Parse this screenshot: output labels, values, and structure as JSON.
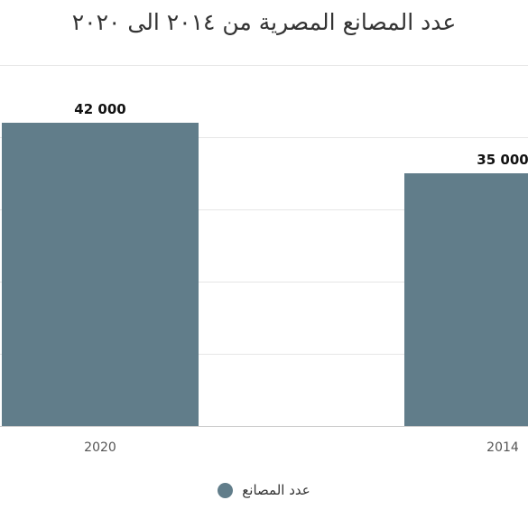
{
  "chart_data": {
    "type": "bar",
    "title": "عدد المصانع المصرية من ٢٠١٤ الى ٢٠٢٠",
    "xlabel": "",
    "ylabel": "",
    "categories": [
      "2014",
      "2020"
    ],
    "series": [
      {
        "name": "عدد المصانع",
        "values": [
          35000,
          42000
        ],
        "data_labels": [
          "35 000",
          "42 000"
        ],
        "color": "#617d8a"
      }
    ],
    "ylim": [
      0,
      50000
    ],
    "grid": true,
    "legend_position": "bottom"
  }
}
